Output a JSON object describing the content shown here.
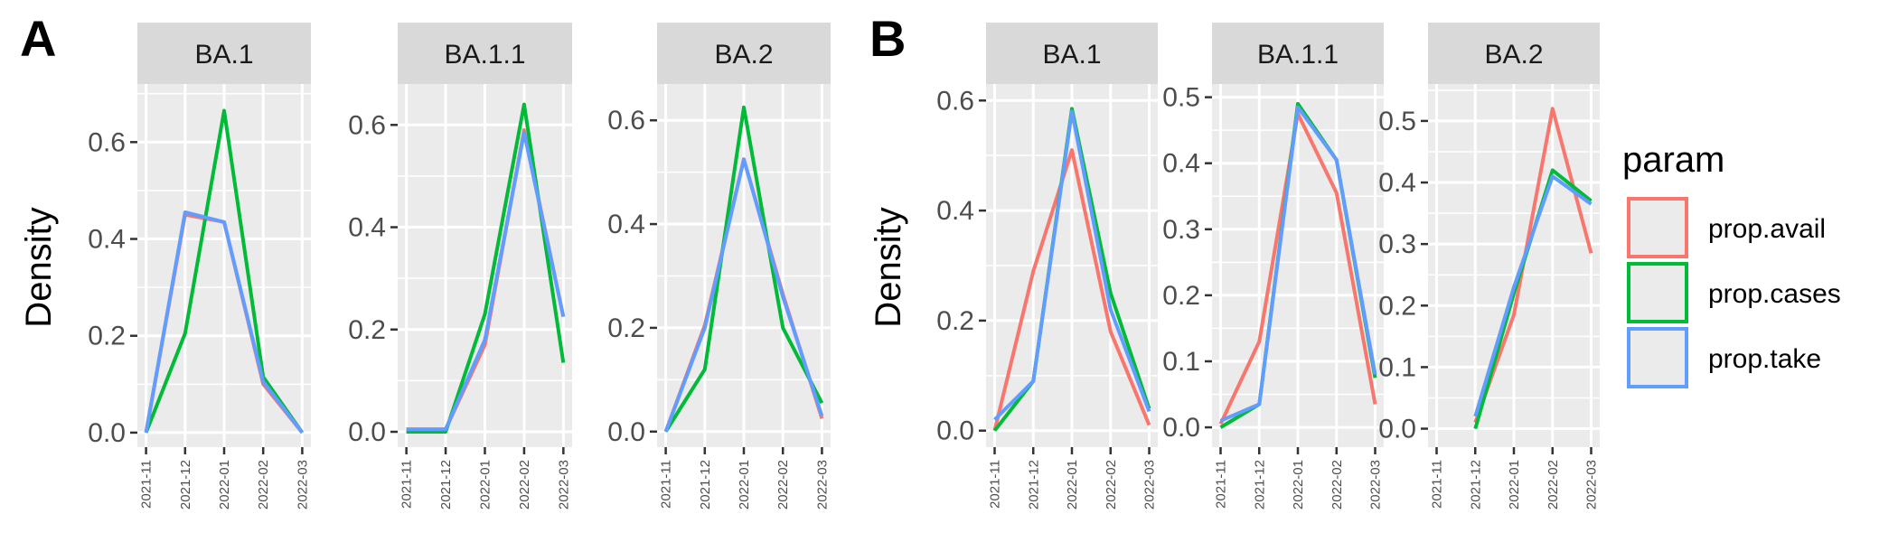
{
  "colors": {
    "prop.avail": "#F8766D",
    "prop.cases": "#00BA38",
    "prop.take": "#619CFF",
    "panel_bg": "#EBEBEB",
    "strip_bg": "#D9D9D9",
    "grid": "#FFFFFF"
  },
  "figure": {
    "tags": [
      "A",
      "B"
    ],
    "ylabel": "Density"
  },
  "legend": {
    "title": "param",
    "items": [
      "prop.avail",
      "prop.cases",
      "prop.take"
    ]
  },
  "chart_data": [
    {
      "type": "line",
      "tag": "A",
      "facet": "BA.1",
      "categories": [
        "2021-11",
        "2021-12",
        "2022-01",
        "2022-02",
        "2022-03"
      ],
      "ylim": [
        -0.03,
        0.72
      ],
      "yticks": [
        0.0,
        0.2,
        0.4,
        0.6
      ],
      "ytick_labels": [
        "0.0",
        "0.2",
        "0.4",
        "0.6"
      ],
      "ylabel": "Density",
      "series": [
        {
          "name": "prop.avail",
          "values": [
            0.0,
            0.45,
            0.435,
            0.1,
            0.0
          ]
        },
        {
          "name": "prop.cases",
          "values": [
            0.0,
            0.205,
            0.665,
            0.115,
            0.0
          ]
        },
        {
          "name": "prop.take",
          "values": [
            0.0,
            0.455,
            0.435,
            0.105,
            0.0
          ]
        }
      ]
    },
    {
      "type": "line",
      "tag": "A",
      "facet": "BA.1.1",
      "categories": [
        "2021-11",
        "2021-12",
        "2022-01",
        "2022-02",
        "2022-03"
      ],
      "ylim": [
        -0.03,
        0.68
      ],
      "yticks": [
        0.0,
        0.2,
        0.4,
        0.6
      ],
      "ytick_labels": [
        "0.0",
        "0.2",
        "0.4",
        "0.6"
      ],
      "series": [
        {
          "name": "prop.avail",
          "values": [
            0.005,
            0.005,
            0.17,
            0.59,
            0.225
          ]
        },
        {
          "name": "prop.cases",
          "values": [
            0.0,
            0.0,
            0.23,
            0.64,
            0.135
          ]
        },
        {
          "name": "prop.take",
          "values": [
            0.005,
            0.005,
            0.18,
            0.585,
            0.225
          ]
        }
      ]
    },
    {
      "type": "line",
      "tag": "A",
      "facet": "BA.2",
      "categories": [
        "2021-11",
        "2021-12",
        "2022-01",
        "2022-02",
        "2022-03"
      ],
      "ylim": [
        -0.03,
        0.67
      ],
      "yticks": [
        0.0,
        0.2,
        0.4,
        0.6
      ],
      "ytick_labels": [
        "0.0",
        "0.2",
        "0.4",
        "0.6"
      ],
      "series": [
        {
          "name": "prop.avail",
          "values": [
            0.0,
            0.205,
            0.525,
            0.265,
            0.025
          ]
        },
        {
          "name": "prop.cases",
          "values": [
            0.0,
            0.12,
            0.625,
            0.2,
            0.055
          ]
        },
        {
          "name": "prop.take",
          "values": [
            0.0,
            0.2,
            0.525,
            0.26,
            0.03
          ]
        }
      ]
    },
    {
      "type": "line",
      "tag": "B",
      "facet": "BA.1",
      "categories": [
        "2021-11",
        "2021-12",
        "2022-01",
        "2022-02",
        "2022-03"
      ],
      "ylim": [
        -0.03,
        0.63
      ],
      "yticks": [
        0.0,
        0.2,
        0.4,
        0.6
      ],
      "ytick_labels": [
        "0.0",
        "0.2",
        "0.4",
        "0.6"
      ],
      "ylabel": "Density",
      "series": [
        {
          "name": "prop.avail",
          "values": [
            0.0,
            0.29,
            0.51,
            0.18,
            0.01
          ]
        },
        {
          "name": "prop.cases",
          "values": [
            0.0,
            0.09,
            0.585,
            0.25,
            0.04
          ]
        },
        {
          "name": "prop.take",
          "values": [
            0.02,
            0.09,
            0.58,
            0.22,
            0.035
          ]
        }
      ]
    },
    {
      "type": "line",
      "tag": "B",
      "facet": "BA.1.1",
      "categories": [
        "2021-11",
        "2021-12",
        "2022-01",
        "2022-02",
        "2022-03"
      ],
      "ylim": [
        -0.03,
        0.52
      ],
      "yticks": [
        0.0,
        0.1,
        0.2,
        0.3,
        0.4,
        0.5
      ],
      "ytick_labels": [
        "0.0",
        "0.1",
        "0.2",
        "0.3",
        "0.4",
        "0.5"
      ],
      "series": [
        {
          "name": "prop.avail",
          "values": [
            0.005,
            0.13,
            0.475,
            0.355,
            0.035
          ]
        },
        {
          "name": "prop.cases",
          "values": [
            0.0,
            0.035,
            0.49,
            0.405,
            0.075
          ]
        },
        {
          "name": "prop.take",
          "values": [
            0.01,
            0.035,
            0.485,
            0.405,
            0.08
          ]
        }
      ]
    },
    {
      "type": "line",
      "tag": "B",
      "facet": "BA.2",
      "categories": [
        "2021-11",
        "2021-12",
        "2022-01",
        "2022-02",
        "2022-03"
      ],
      "ylim": [
        -0.03,
        0.56
      ],
      "yticks": [
        0.0,
        0.1,
        0.2,
        0.3,
        0.4,
        0.5
      ],
      "ytick_labels": [
        "0.0",
        "0.1",
        "0.2",
        "0.3",
        "0.4",
        "0.5"
      ],
      "series": [
        {
          "name": "prop.avail",
          "values": [
            null,
            0.01,
            0.185,
            0.52,
            0.285
          ]
        },
        {
          "name": "prop.cases",
          "values": [
            null,
            0.0,
            0.22,
            0.42,
            0.37
          ]
        },
        {
          "name": "prop.take",
          "values": [
            null,
            0.02,
            0.23,
            0.41,
            0.365
          ]
        }
      ]
    }
  ]
}
